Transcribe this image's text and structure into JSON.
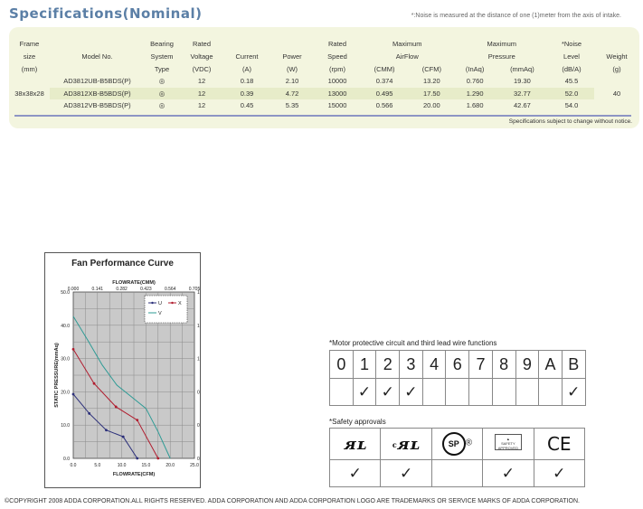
{
  "title": "Specifications(Nominal)",
  "noise_note": "*:Noise is measured at the distance of one (1)meter from the axis of intake.",
  "spec_table": {
    "headers": {
      "frame": [
        "Frame",
        "size",
        "(mm)"
      ],
      "model": "Model No.",
      "bearing": [
        "Bearing",
        "System",
        "Type"
      ],
      "voltage": [
        "Rated",
        "Voltage",
        "(VDC)"
      ],
      "current": [
        "Current",
        "(A)"
      ],
      "power": [
        "Power",
        "(W)"
      ],
      "speed": [
        "Rated",
        "Speed",
        "(rpm)"
      ],
      "airflow": [
        "Maximum",
        "AirFlow",
        "(CMM)",
        "(CFM)"
      ],
      "pressure": [
        "Maximum",
        "Pressure",
        "(InAq)",
        "(mmAq)"
      ],
      "noise": [
        "*Noise",
        "Level",
        "(dB/A)"
      ],
      "weight": [
        "Weight",
        "(g)"
      ]
    },
    "frame_size": "38x38x28",
    "weight": "40",
    "rows": [
      {
        "model": "AD3812UB-B5BDS(P)",
        "bearing": "◎",
        "voltage": "12",
        "current": "0.18",
        "power": "2.10",
        "speed": "10000",
        "cmm": "0.374",
        "cfm": "13.20",
        "inaq": "0.760",
        "mmaq": "19.30",
        "noise": "45.5"
      },
      {
        "model": "AD3812XB-B5BDS(P)",
        "bearing": "◎",
        "voltage": "12",
        "current": "0.39",
        "power": "4.72",
        "speed": "13000",
        "cmm": "0.495",
        "cfm": "17.50",
        "inaq": "1.290",
        "mmaq": "32.77",
        "noise": "52.0"
      },
      {
        "model": "AD3812VB-B5BDS(P)",
        "bearing": "◎",
        "voltage": "12",
        "current": "0.45",
        "power": "5.35",
        "speed": "15000",
        "cmm": "0.566",
        "cfm": "20.00",
        "inaq": "1.680",
        "mmaq": "42.67",
        "noise": "54.0"
      }
    ],
    "footnote": "Specifications subject to change without notice."
  },
  "chart_data": {
    "type": "line",
    "title": "Fan Performance Curve",
    "top_axis_label": "FLOWRATE(CMM)",
    "xlabel": "FLOWRATE(CFM)",
    "ylabel_left": "STATIC PRESSURE(mmAq)",
    "ylabel_right": "STATIC PRESSURE(InAq)",
    "xlim": [
      0,
      25
    ],
    "ylim": [
      0,
      50
    ],
    "x_ticks": [
      "0.0",
      "5.0",
      "10.0",
      "15.0",
      "20.0",
      "25.0"
    ],
    "y_ticks": [
      "0.0",
      "10.0",
      "20.0",
      "30.0",
      "40.0",
      "50.0"
    ],
    "top_ticks": [
      "0.000",
      "0.141",
      "0.282",
      "0.423",
      "0.564",
      "0.705"
    ],
    "right_ticks": [
      "0.000",
      "0.393",
      "0.786",
      "1.179",
      "1.572",
      "1.965"
    ],
    "grid": true,
    "legend_position": "top-right",
    "series": [
      {
        "name": "U",
        "color": "#2b2f7a",
        "marker": true,
        "x": [
          0,
          3.3,
          6.8,
          10.3,
          13.2
        ],
        "y": [
          19.3,
          13.5,
          8.5,
          6.5,
          0
        ]
      },
      {
        "name": "X",
        "color": "#b01c2e",
        "marker": true,
        "x": [
          0,
          4.3,
          8.8,
          13.2,
          17.5
        ],
        "y": [
          32.8,
          22.5,
          15.5,
          11.5,
          0
        ]
      },
      {
        "name": "V",
        "color": "#2e9b95",
        "marker": false,
        "x": [
          0,
          3,
          6,
          9,
          12,
          15,
          17.5,
          20
        ],
        "y": [
          42.7,
          35.5,
          28,
          22,
          18.5,
          15,
          8,
          0
        ]
      }
    ]
  },
  "motor_functions": {
    "label": "*Motor protective circuit and third lead wire functions",
    "codes": [
      "0",
      "1",
      "2",
      "3",
      "4",
      "6",
      "7",
      "8",
      "9",
      "A",
      "B"
    ],
    "checks": [
      "",
      "✓",
      "✓",
      "✓",
      "",
      "",
      "",
      "",
      "",
      "",
      "✓"
    ]
  },
  "safety": {
    "label": "*Safety approvals",
    "approvals": [
      {
        "icon": "ul-icon",
        "text": "ᴙʟ",
        "checked": "✓"
      },
      {
        "icon": "cul-icon",
        "text": "cᴙʟ",
        "checked": "✓"
      },
      {
        "icon": "csa-icon",
        "text": "SP",
        "checked": ""
      },
      {
        "icon": "tuv-icon",
        "text": "",
        "checked": "✓"
      },
      {
        "icon": "ce-icon",
        "text": "CE",
        "checked": "✓"
      }
    ]
  },
  "copyright": "©COPYRIGHT 2008 ADDA CORPORATION.ALL RIGHTS RESERVED. ADDA CORPORATION AND ADDA  CORPORATION LOGO ARE TRADEMARKS OR SERVICE MARKS OF ADDA CORPORATION."
}
